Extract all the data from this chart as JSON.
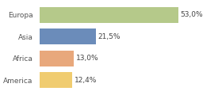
{
  "categories": [
    "Europa",
    "Asia",
    "Africa",
    "America"
  ],
  "values": [
    53.0,
    21.5,
    13.0,
    12.4
  ],
  "labels": [
    "53,0%",
    "21,5%",
    "13,0%",
    "12,4%"
  ],
  "bar_colors": [
    "#b5c98a",
    "#6b8cba",
    "#e8a87c",
    "#f0cc70"
  ],
  "background_color": "#ffffff",
  "xlim": [
    0,
    68
  ],
  "label_fontsize": 6.5,
  "tick_fontsize": 6.5,
  "bar_height": 0.72
}
